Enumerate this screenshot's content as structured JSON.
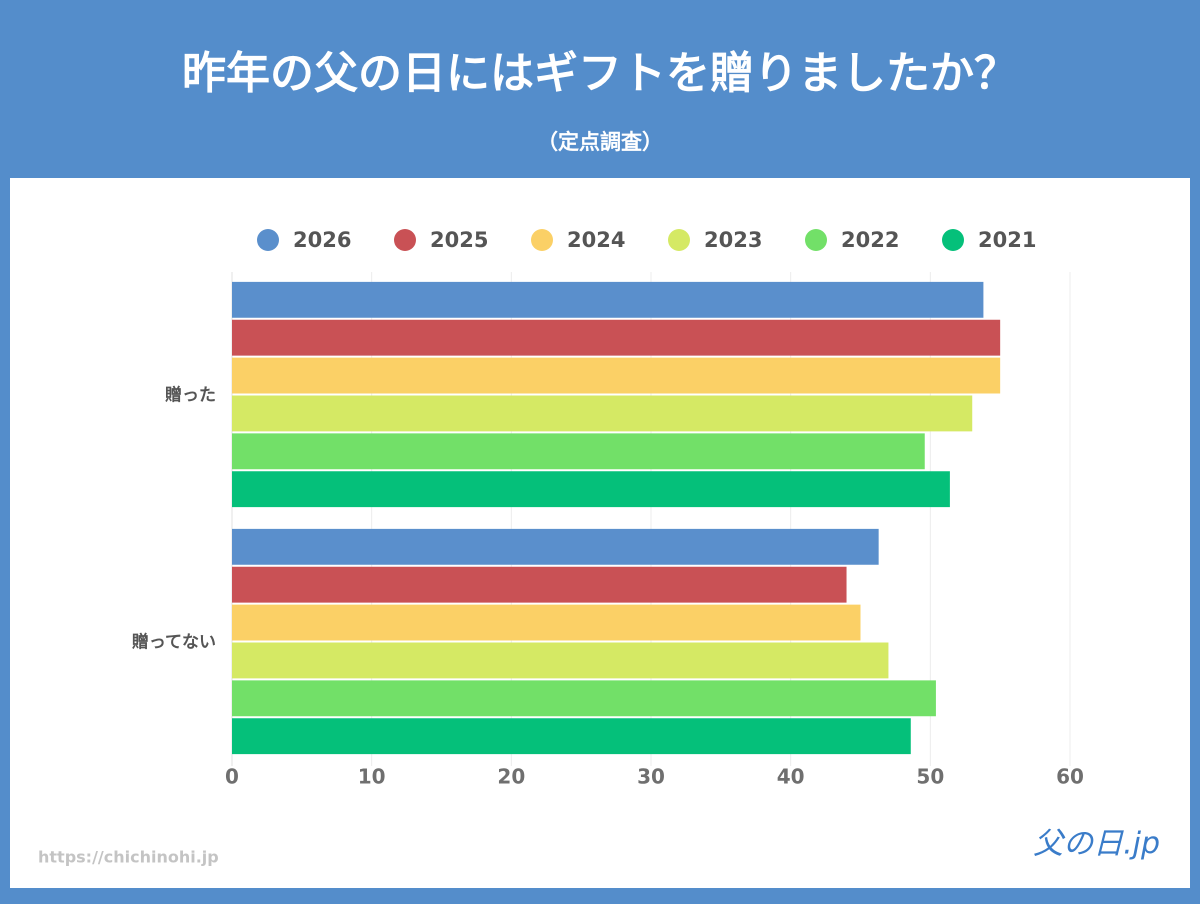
{
  "chart_data": {
    "type": "bar",
    "orientation": "horizontal",
    "title": "昨年の父の日にはギフトを贈りましたか？",
    "subtitle": "（定点調査）",
    "categories": [
      "贈った",
      "贈ってない"
    ],
    "series": [
      {
        "name": "2026",
        "color": "#5a8fcc",
        "values": [
          53.8,
          46.3
        ]
      },
      {
        "name": "2025",
        "color": "#c95155",
        "values": [
          55.0,
          44.0
        ]
      },
      {
        "name": "2024",
        "color": "#fbd066",
        "values": [
          55.0,
          45.0
        ]
      },
      {
        "name": "2023",
        "color": "#d5e964",
        "values": [
          53.0,
          47.0
        ]
      },
      {
        "name": "2022",
        "color": "#72e068",
        "values": [
          49.6,
          50.4
        ]
      },
      {
        "name": "2021",
        "color": "#05c07a",
        "values": [
          51.4,
          48.6
        ]
      }
    ],
    "xlim": [
      0,
      60
    ],
    "xticks": [
      0,
      10,
      20,
      30,
      40,
      50,
      60
    ],
    "grid": true,
    "legend": "top"
  },
  "footer": {
    "url": "https://chichinohi.jp",
    "logo": "父の日.jp"
  }
}
